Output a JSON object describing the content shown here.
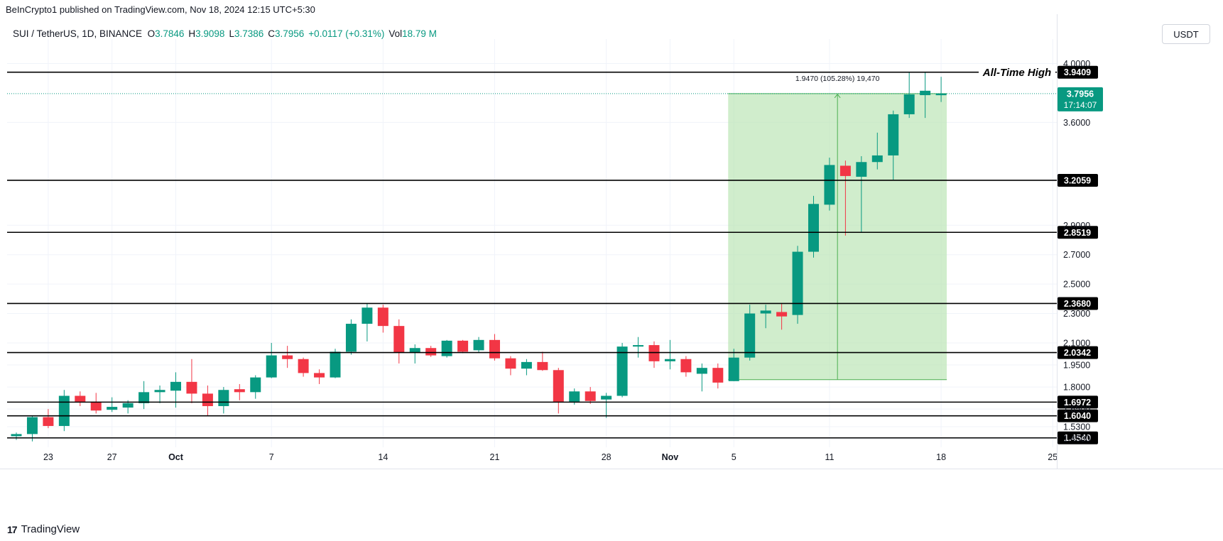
{
  "header": {
    "publisher": "BeInCrypto1 published on TradingView.com, Nov 18, 2024 12:15 UTC+5:30",
    "symbol": "SUI / TetherUS, 1D, BINANCE",
    "ohlc": {
      "o_label": "O",
      "o": "3.7846",
      "h_label": "H",
      "h": "3.9098",
      "l_label": "L",
      "l": "3.7386",
      "c_label": "C",
      "c": "3.7956",
      "change": "+0.0117 (+0.31%)",
      "vol_label": "Vol",
      "vol": "18.79 M"
    },
    "currency": "USDT"
  },
  "footer": {
    "brand": "TradingView",
    "logo": "17"
  },
  "chart_data": {
    "type": "candlestick",
    "colors": {
      "up": "#089981",
      "down": "#f23645",
      "range_fill": "#b7e4b0",
      "range_line": "#4caf50"
    },
    "ylim": [
      1.39,
      4.07
    ],
    "x_ticks": [
      "23",
      "27",
      "Oct",
      "7",
      "14",
      "21",
      "28",
      "Nov",
      "5",
      "11",
      "18",
      "25"
    ],
    "y_ticks": [
      "1.4500",
      "1.5300",
      "1.6500",
      "1.8000",
      "1.9500",
      "2.1000",
      "2.3000",
      "2.5000",
      "2.7000",
      "2.9000",
      "3.6000",
      "4.0000"
    ],
    "candles": [
      {
        "date": "Sep 21",
        "o": 1.465,
        "h": 1.49,
        "l": 1.44,
        "c": 1.48
      },
      {
        "date": "Sep 22",
        "o": 1.48,
        "h": 1.6,
        "l": 1.43,
        "c": 1.595
      },
      {
        "date": "Sep 23",
        "o": 1.595,
        "h": 1.65,
        "l": 1.52,
        "c": 1.535
      },
      {
        "date": "Sep 24",
        "o": 1.535,
        "h": 1.78,
        "l": 1.5,
        "c": 1.74
      },
      {
        "date": "Sep 25",
        "o": 1.74,
        "h": 1.77,
        "l": 1.67,
        "c": 1.7
      },
      {
        "date": "Sep 26",
        "o": 1.7,
        "h": 1.76,
        "l": 1.62,
        "c": 1.64
      },
      {
        "date": "Sep 27",
        "o": 1.645,
        "h": 1.73,
        "l": 1.63,
        "c": 1.665
      },
      {
        "date": "Sep 28",
        "o": 1.66,
        "h": 1.71,
        "l": 1.62,
        "c": 1.69
      },
      {
        "date": "Sep 29",
        "o": 1.69,
        "h": 1.84,
        "l": 1.65,
        "c": 1.765
      },
      {
        "date": "Sep 30",
        "o": 1.765,
        "h": 1.81,
        "l": 1.69,
        "c": 1.78
      },
      {
        "date": "Oct 1",
        "o": 1.775,
        "h": 1.9,
        "l": 1.66,
        "c": 1.835
      },
      {
        "date": "Oct 2",
        "o": 1.835,
        "h": 1.99,
        "l": 1.69,
        "c": 1.755
      },
      {
        "date": "Oct 3",
        "o": 1.755,
        "h": 1.81,
        "l": 1.6,
        "c": 1.67
      },
      {
        "date": "Oct 4",
        "o": 1.67,
        "h": 1.8,
        "l": 1.62,
        "c": 1.78
      },
      {
        "date": "Oct 5",
        "o": 1.785,
        "h": 1.82,
        "l": 1.71,
        "c": 1.765
      },
      {
        "date": "Oct 6",
        "o": 1.765,
        "h": 1.88,
        "l": 1.72,
        "c": 1.865
      },
      {
        "date": "Oct 7",
        "o": 1.865,
        "h": 2.1,
        "l": 1.86,
        "c": 2.015
      },
      {
        "date": "Oct 8",
        "o": 2.015,
        "h": 2.08,
        "l": 1.93,
        "c": 1.99
      },
      {
        "date": "Oct 9",
        "o": 1.99,
        "h": 2.0,
        "l": 1.87,
        "c": 1.895
      },
      {
        "date": "Oct 10",
        "o": 1.895,
        "h": 1.92,
        "l": 1.82,
        "c": 1.865
      },
      {
        "date": "Oct 11",
        "o": 1.865,
        "h": 2.06,
        "l": 1.86,
        "c": 2.04
      },
      {
        "date": "Oct 12",
        "o": 2.04,
        "h": 2.26,
        "l": 2.02,
        "c": 2.23
      },
      {
        "date": "Oct 13",
        "o": 2.23,
        "h": 2.37,
        "l": 2.11,
        "c": 2.34
      },
      {
        "date": "Oct 14",
        "o": 2.34,
        "h": 2.36,
        "l": 2.17,
        "c": 2.215
      },
      {
        "date": "Oct 15",
        "o": 2.215,
        "h": 2.26,
        "l": 1.96,
        "c": 2.035
      },
      {
        "date": "Oct 16",
        "o": 2.035,
        "h": 2.09,
        "l": 1.96,
        "c": 2.065
      },
      {
        "date": "Oct 17",
        "o": 2.065,
        "h": 2.08,
        "l": 2.005,
        "c": 2.015
      },
      {
        "date": "Oct 18",
        "o": 2.01,
        "h": 2.12,
        "l": 2.0,
        "c": 2.115
      },
      {
        "date": "Oct 19",
        "o": 2.115,
        "h": 2.12,
        "l": 2.03,
        "c": 2.04
      },
      {
        "date": "Oct 20",
        "o": 2.05,
        "h": 2.14,
        "l": 2.035,
        "c": 2.12
      },
      {
        "date": "Oct 21",
        "o": 2.12,
        "h": 2.16,
        "l": 1.98,
        "c": 1.995
      },
      {
        "date": "Oct 22",
        "o": 1.995,
        "h": 2.01,
        "l": 1.88,
        "c": 1.925
      },
      {
        "date": "Oct 23",
        "o": 1.925,
        "h": 1.99,
        "l": 1.88,
        "c": 1.97
      },
      {
        "date": "Oct 24",
        "o": 1.97,
        "h": 2.04,
        "l": 1.91,
        "c": 1.915
      },
      {
        "date": "Oct 25",
        "o": 1.915,
        "h": 1.93,
        "l": 1.62,
        "c": 1.7
      },
      {
        "date": "Oct 26",
        "o": 1.7,
        "h": 1.79,
        "l": 1.68,
        "c": 1.77
      },
      {
        "date": "Oct 27",
        "o": 1.77,
        "h": 1.8,
        "l": 1.685,
        "c": 1.705
      },
      {
        "date": "Oct 28",
        "o": 1.715,
        "h": 1.76,
        "l": 1.59,
        "c": 1.74
      },
      {
        "date": "Oct 29",
        "o": 1.74,
        "h": 2.1,
        "l": 1.73,
        "c": 2.075
      },
      {
        "date": "Oct 30",
        "o": 2.075,
        "h": 2.14,
        "l": 2.0,
        "c": 2.085
      },
      {
        "date": "Oct 31",
        "o": 2.085,
        "h": 2.11,
        "l": 1.93,
        "c": 1.975
      },
      {
        "date": "Nov 1",
        "o": 1.975,
        "h": 2.12,
        "l": 1.92,
        "c": 1.99
      },
      {
        "date": "Nov 2",
        "o": 1.99,
        "h": 2.01,
        "l": 1.87,
        "c": 1.9
      },
      {
        "date": "Nov 3",
        "o": 1.89,
        "h": 1.96,
        "l": 1.77,
        "c": 1.93
      },
      {
        "date": "Nov 4",
        "o": 1.93,
        "h": 1.96,
        "l": 1.79,
        "c": 1.83
      },
      {
        "date": "Nov 5",
        "o": 1.84,
        "h": 2.06,
        "l": 1.84,
        "c": 2.0
      },
      {
        "date": "Nov 6",
        "o": 2.0,
        "h": 2.36,
        "l": 1.98,
        "c": 2.3
      },
      {
        "date": "Nov 7",
        "o": 2.3,
        "h": 2.36,
        "l": 2.2,
        "c": 2.32
      },
      {
        "date": "Nov 8",
        "o": 2.31,
        "h": 2.37,
        "l": 2.19,
        "c": 2.28
      },
      {
        "date": "Nov 9",
        "o": 2.29,
        "h": 2.76,
        "l": 2.23,
        "c": 2.72
      },
      {
        "date": "Nov 10",
        "o": 2.72,
        "h": 3.1,
        "l": 2.68,
        "c": 3.045
      },
      {
        "date": "Nov 11",
        "o": 3.04,
        "h": 3.36,
        "l": 3.0,
        "c": 3.31
      },
      {
        "date": "Nov 12",
        "o": 3.305,
        "h": 3.34,
        "l": 2.83,
        "c": 3.235
      },
      {
        "date": "Nov 13",
        "o": 3.23,
        "h": 3.37,
        "l": 2.85,
        "c": 3.33
      },
      {
        "date": "Nov 14",
        "o": 3.33,
        "h": 3.53,
        "l": 3.28,
        "c": 3.375
      },
      {
        "date": "Nov 15",
        "o": 3.375,
        "h": 3.68,
        "l": 3.21,
        "c": 3.655
      },
      {
        "date": "Nov 16",
        "o": 3.655,
        "h": 3.94,
        "l": 3.63,
        "c": 3.79
      },
      {
        "date": "Nov 17",
        "o": 3.785,
        "h": 3.94,
        "l": 3.63,
        "c": 3.815
      },
      {
        "date": "Nov 18",
        "o": 3.7846,
        "h": 3.9098,
        "l": 3.7386,
        "c": 3.7956
      }
    ],
    "levels": [
      {
        "value": 3.9409,
        "label": "3.9409"
      },
      {
        "value": 3.2059,
        "label": "3.2059"
      },
      {
        "value": 2.8519,
        "label": "2.8519"
      },
      {
        "value": 2.368,
        "label": "2.3680"
      },
      {
        "value": 2.0342,
        "label": "2.0342"
      },
      {
        "value": 1.6972,
        "label": "1.6972"
      },
      {
        "value": 1.604,
        "label": "1.6040"
      },
      {
        "value": 1.454,
        "label": "1.4540"
      }
    ],
    "ath_label": "All-Time High",
    "current_price": {
      "value": 3.7956,
      "label": "3.7956",
      "countdown": "17:14:07"
    },
    "range": {
      "from": "Nov 5",
      "to": "Nov 18",
      "low": 1.85,
      "high": 3.7956,
      "label": "1.9470 (105.28%) 19,470"
    }
  }
}
